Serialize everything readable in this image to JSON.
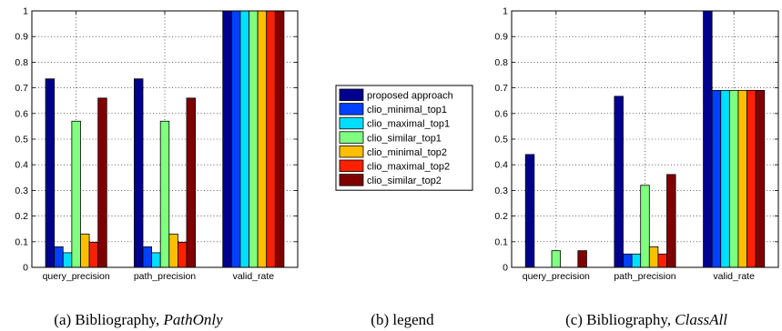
{
  "chart_data": [
    {
      "type": "bar",
      "categories": [
        "query_precision",
        "path_precision",
        "valid_rate"
      ],
      "series": [
        {
          "name": "proposed approach",
          "values": [
            0.735,
            0.735,
            1.0
          ]
        },
        {
          "name": "clio_minimal_top1",
          "values": [
            0.08,
            0.08,
            1.0
          ]
        },
        {
          "name": "clio_maximal_top1",
          "values": [
            0.057,
            0.057,
            1.0
          ]
        },
        {
          "name": "clio_similar_top1",
          "values": [
            0.57,
            0.57,
            1.0
          ]
        },
        {
          "name": "clio_minimal_top2",
          "values": [
            0.13,
            0.13,
            1.0
          ]
        },
        {
          "name": "clio_maximal_top2",
          "values": [
            0.098,
            0.098,
            1.0
          ]
        },
        {
          "name": "clio_similar_top2",
          "values": [
            0.66,
            0.66,
            1.0
          ]
        }
      ],
      "ylim": [
        0,
        1
      ],
      "yticks": [
        "0",
        "0.1",
        "0.2",
        "0.3",
        "0.4",
        "0.5",
        "0.6",
        "0.7",
        "0.8",
        "0.9",
        "1"
      ],
      "grid": true,
      "caption_prefix": "(a)  Bibliography, ",
      "caption_italic": "PathOnly"
    },
    {
      "type": "bar",
      "categories": [
        "query_precision",
        "path_precision",
        "valid_rate"
      ],
      "series": [
        {
          "name": "proposed approach",
          "values": [
            0.44,
            0.667,
            1.0
          ]
        },
        {
          "name": "clio_minimal_top1",
          "values": [
            0,
            0.052,
            0.69
          ]
        },
        {
          "name": "clio_maximal_top1",
          "values": [
            0,
            0.052,
            0.69
          ]
        },
        {
          "name": "clio_similar_top1",
          "values": [
            0.065,
            0.32,
            0.69
          ]
        },
        {
          "name": "clio_minimal_top2",
          "values": [
            0,
            0.08,
            0.69
          ]
        },
        {
          "name": "clio_maximal_top2",
          "values": [
            0,
            0.052,
            0.69
          ]
        },
        {
          "name": "clio_similar_top2",
          "values": [
            0.065,
            0.362,
            0.69
          ]
        }
      ],
      "ylim": [
        0,
        1
      ],
      "yticks": [
        "0",
        "0.1",
        "0.2",
        "0.3",
        "0.4",
        "0.5",
        "0.6",
        "0.7",
        "0.8",
        "0.9",
        "1"
      ],
      "grid": true,
      "caption_prefix": "(c)  Bibliography, ",
      "caption_italic": "ClassAll"
    }
  ],
  "legend": {
    "caption": "(b)  legend",
    "entries": [
      "proposed approach",
      "clio_minimal_top1",
      "clio_maximal_top1",
      "clio_similar_top1",
      "clio_minimal_top2",
      "clio_maximal_top2",
      "clio_similar_top2"
    ]
  },
  "series_colors": [
    "#00008F",
    "#0040FF",
    "#00DFFF",
    "#80FF80",
    "#FFBF00",
    "#FF2000",
    "#800000"
  ]
}
